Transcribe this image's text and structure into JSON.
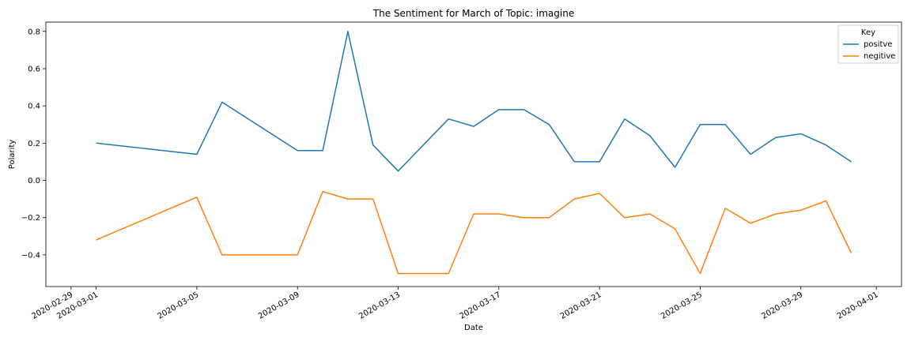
{
  "chart_data": {
    "type": "line",
    "title": "The Sentiment for March of Topic: imagine",
    "xlabel": "Date",
    "ylabel": "Polarity",
    "xlim": [
      "2020-02-28",
      "2020-04-02"
    ],
    "ylim": [
      -0.57,
      0.85
    ],
    "x_ticks": [
      "2020-02-29",
      "2020-03-01",
      "2020-03-05",
      "2020-03-09",
      "2020-03-13",
      "2020-03-17",
      "2020-03-21",
      "2020-03-25",
      "2020-03-29",
      "2020-04-01"
    ],
    "y_ticks": [
      0.8,
      0.6,
      0.4,
      0.2,
      0.0,
      -0.2,
      -0.4
    ],
    "y_tick_labels": [
      "0.8",
      "0.6",
      "0.4",
      "0.2",
      "0.0",
      "−0.2",
      "−0.4"
    ],
    "legend": {
      "title": "Key",
      "position": "top-right"
    },
    "grid": false,
    "series": [
      {
        "name": "positve",
        "color": "#1f77b4",
        "x": [
          "2020-03-01",
          "2020-03-05",
          "2020-03-06",
          "2020-03-09",
          "2020-03-10",
          "2020-03-11",
          "2020-03-12",
          "2020-03-13",
          "2020-03-15",
          "2020-03-16",
          "2020-03-17",
          "2020-03-18",
          "2020-03-19",
          "2020-03-20",
          "2020-03-21",
          "2020-03-22",
          "2020-03-23",
          "2020-03-24",
          "2020-03-25",
          "2020-03-26",
          "2020-03-27",
          "2020-03-28",
          "2020-03-29",
          "2020-03-30",
          "2020-03-31"
        ],
        "y": [
          0.2,
          0.14,
          0.42,
          0.16,
          0.16,
          0.8,
          0.19,
          0.05,
          0.33,
          0.29,
          0.38,
          0.38,
          0.3,
          0.1,
          0.1,
          0.33,
          0.24,
          0.07,
          0.3,
          0.3,
          0.14,
          0.23,
          0.25,
          0.19,
          0.1
        ]
      },
      {
        "name": "negitive",
        "color": "#ff7f0e",
        "x": [
          "2020-03-01",
          "2020-03-05",
          "2020-03-06",
          "2020-03-09",
          "2020-03-10",
          "2020-03-11",
          "2020-03-12",
          "2020-03-13",
          "2020-03-15",
          "2020-03-16",
          "2020-03-17",
          "2020-03-18",
          "2020-03-19",
          "2020-03-20",
          "2020-03-21",
          "2020-03-22",
          "2020-03-23",
          "2020-03-24",
          "2020-03-25",
          "2020-03-26",
          "2020-03-27",
          "2020-03-28",
          "2020-03-29",
          "2020-03-30",
          "2020-03-31"
        ],
        "y": [
          -0.32,
          -0.09,
          -0.4,
          -0.4,
          -0.06,
          -0.1,
          -0.1,
          -0.5,
          -0.5,
          -0.18,
          -0.18,
          -0.2,
          -0.2,
          -0.1,
          -0.07,
          -0.2,
          -0.18,
          -0.26,
          -0.5,
          -0.15,
          -0.23,
          -0.18,
          -0.16,
          -0.11,
          -0.39
        ]
      }
    ]
  }
}
